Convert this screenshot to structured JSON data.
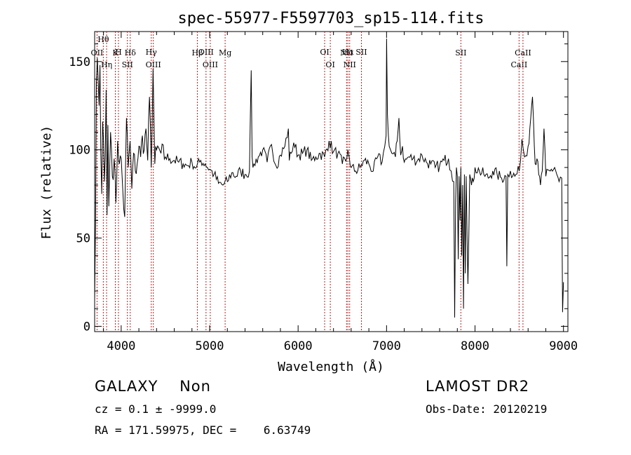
{
  "chart_data": {
    "type": "line",
    "title": "spec-55977-F5597703_sp15-114.fits",
    "xlabel": "Wavelength (Å)",
    "ylabel": "Flux (relative)",
    "xlim": [
      3700,
      9050
    ],
    "ylim": [
      -3,
      167
    ],
    "x_ticks": [
      4000,
      5000,
      6000,
      7000,
      8000,
      9000
    ],
    "y_ticks": [
      0,
      50,
      100,
      150
    ],
    "grid": false,
    "line_color": "#000000",
    "marker_color": "#b22222",
    "emission_lines": [
      {
        "label": "OII",
        "wavelength": 3727,
        "row": 2
      },
      {
        "label": "Hθ",
        "wavelength": 3798,
        "row": 0
      },
      {
        "label": "Hη",
        "wavelength": 3835,
        "row": 3
      },
      {
        "label": "K",
        "wavelength": 3934,
        "row": 2
      },
      {
        "label": "H",
        "wavelength": 3969,
        "row": 1
      },
      {
        "label": "SII",
        "wavelength": 4070,
        "row": 3
      },
      {
        "label": "Hδ",
        "wavelength": 4102,
        "row": 2
      },
      {
        "label": "Hγ",
        "wavelength": 4340,
        "row": 1
      },
      {
        "label": "OIII",
        "wavelength": 4363,
        "row": 3
      },
      {
        "label": "Hβ",
        "wavelength": 4861,
        "row": 2
      },
      {
        "label": "OIII",
        "wavelength": 4959,
        "row": 1
      },
      {
        "label": "OIII",
        "wavelength": 5007,
        "row": 3
      },
      {
        "label": "Mg",
        "wavelength": 5175,
        "row": 2
      },
      {
        "label": "OI",
        "wavelength": 6300,
        "row": 1
      },
      {
        "label": "OI",
        "wavelength": 6364,
        "row": 3
      },
      {
        "label": "NII",
        "wavelength": 6548,
        "row": 2
      },
      {
        "label": "Hα",
        "wavelength": 6563,
        "row": 1
      },
      {
        "label": "NII",
        "wavelength": 6583,
        "row": 3
      },
      {
        "label": "SII",
        "wavelength": 6716,
        "row": 1
      },
      {
        "label": "SII",
        "wavelength": 7840,
        "row": 2
      },
      {
        "label": "CaII",
        "wavelength": 8498,
        "row": 3
      },
      {
        "label": "CaII",
        "wavelength": 8542,
        "row": 2
      }
    ],
    "series": [
      {
        "x": [
          3700,
          3710,
          3720,
          3730,
          3740,
          3750,
          3760,
          3770,
          3780,
          3790,
          3800,
          3810,
          3820,
          3830,
          3840,
          3850,
          3860,
          3870,
          3880,
          3890,
          3900,
          3920,
          3940,
          3960,
          3980,
          4000,
          4020,
          4040,
          4060,
          4080,
          4100,
          4120,
          4140,
          4160,
          4180,
          4200,
          4220,
          4240,
          4260,
          4280,
          4300,
          4320,
          4340,
          4360,
          4380,
          4400,
          4450,
          4500,
          4550,
          4600,
          4650,
          4700,
          4750,
          4800,
          4850,
          4900,
          4950,
          5000,
          5050,
          5100,
          5150,
          5200,
          5250,
          5300,
          5350,
          5400,
          5450,
          5470,
          5480,
          5490,
          5500,
          5550,
          5600,
          5650,
          5700,
          5750,
          5800,
          5850,
          5890,
          5900,
          5920,
          5950,
          6000,
          6050,
          6100,
          6150,
          6200,
          6250,
          6300,
          6350,
          6400,
          6450,
          6500,
          6550,
          6563,
          6580,
          6600,
          6650,
          6700,
          6750,
          6800,
          6850,
          6900,
          6950,
          6980,
          6995,
          7000,
          7010,
          7030,
          7060,
          7100,
          7120,
          7140,
          7160,
          7180,
          7200,
          7250,
          7300,
          7350,
          7400,
          7450,
          7500,
          7550,
          7600,
          7650,
          7700,
          7730,
          7760,
          7770,
          7780,
          7790,
          7800,
          7810,
          7820,
          7830,
          7840,
          7850,
          7860,
          7870,
          7880,
          7890,
          7900,
          7920,
          7940,
          7960,
          7980,
          8000,
          8050,
          8100,
          8150,
          8200,
          8250,
          8300,
          8350,
          8360,
          8370,
          8400,
          8450,
          8500,
          8530,
          8560,
          8600,
          8620,
          8640,
          8650,
          8660,
          8680,
          8700,
          8720,
          8740,
          8760,
          8780,
          8800,
          8850,
          8900,
          8950,
          8980,
          8990,
          9000
        ],
        "values": [
          15,
          60,
          138,
          152,
          140,
          125,
          148,
          98,
          75,
          116,
          106,
          82,
          96,
          134,
          63,
          114,
          68,
          89,
          110,
          100,
          85,
          95,
          70,
          105,
          92,
          95,
          75,
          62,
          118,
          90,
          105,
          78,
          98,
          88,
          92,
          102,
          96,
          108,
          100,
          112,
          94,
          130,
          90,
          146,
          92,
          100,
          98,
          96,
          95,
          94,
          93,
          92,
          91,
          93,
          90,
          94,
          92,
          89,
          86,
          81,
          80,
          82,
          87,
          85,
          88,
          86,
          88,
          145,
          96,
          90,
          92,
          96,
          100,
          93,
          103,
          91,
          97,
          102,
          112,
          94,
          98,
          104,
          97,
          98,
          100,
          94,
          96,
          98,
          96,
          105,
          99,
          98,
          92,
          95,
          100,
          95,
          90,
          88,
          90,
          94,
          92,
          88,
          96,
          93,
          102,
          108,
          163,
          120,
          102,
          98,
          96,
          105,
          118,
          97,
          102,
          93,
          96,
          95,
          94,
          97,
          93,
          92,
          90,
          91,
          94,
          95,
          88,
          82,
          5,
          70,
          90,
          85,
          38,
          85,
          60,
          90,
          40,
          80,
          10,
          86,
          30,
          85,
          24,
          86,
          80,
          82,
          90,
          88,
          86,
          84,
          88,
          86,
          84,
          85,
          34,
          86,
          88,
          85,
          88,
          106,
          96,
          102,
          112,
          125,
          130,
          118,
          92,
          95,
          86,
          80,
          88,
          112,
          85,
          88,
          90,
          82,
          84,
          8,
          25
        ]
      }
    ]
  },
  "info": {
    "class_line": "GALAXY    Non",
    "survey": "LAMOST DR2",
    "cz_line": "cz = 0.1 ± -9999.0",
    "obs_date": "Obs-Date: 20120219",
    "radec_line": "RA = 171.59975, DEC =    6.63749"
  }
}
